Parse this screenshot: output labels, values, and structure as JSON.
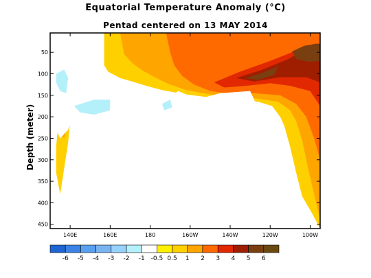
{
  "chart_data": {
    "type": "heatmap",
    "title": "Equatorial Temperature Anomaly (°C)",
    "subtitle": "Pentad centered on 13 MAY 2014",
    "xlabel": "",
    "ylabel": "Depth (meter)",
    "x_range": [
      130,
      265
    ],
    "x_ticks": [
      {
        "value": 140,
        "label": "140E"
      },
      {
        "value": 160,
        "label": "160E"
      },
      {
        "value": 180,
        "label": "180"
      },
      {
        "value": 200,
        "label": "160W"
      },
      {
        "value": 220,
        "label": "140W"
      },
      {
        "value": 240,
        "label": "120W"
      },
      {
        "value": 260,
        "label": "100W"
      }
    ],
    "y_range": [
      5,
      460
    ],
    "y_ticks": [
      50,
      100,
      150,
      200,
      250,
      300,
      350,
      400,
      450
    ],
    "y_inverted": true,
    "colorbar": {
      "levels": [
        -7,
        -6,
        -5,
        -4,
        -3,
        -2,
        -1,
        -0.5,
        0.5,
        1,
        2,
        3,
        4,
        5,
        6,
        7
      ],
      "labels": [
        "-6",
        "-5",
        "-4",
        "-3",
        "-2",
        "-1",
        "-0.5",
        "0.5",
        "1",
        "2",
        "3",
        "4",
        "5",
        "6"
      ],
      "colors": [
        "#1e64d2",
        "#3c82e6",
        "#5aa0f0",
        "#78b4f0",
        "#96d2fa",
        "#b4f0fa",
        "#ffffff",
        "#fff000",
        "#ffd000",
        "#ffa500",
        "#ff6a00",
        "#e12800",
        "#a01e00",
        "#7a3f10",
        "#6b4a12"
      ]
    },
    "regions": [
      {
        "anomaly": "0.5 to 1",
        "points": [
          [
            157,
            5
          ],
          [
            265,
            5
          ],
          [
            265,
            460
          ],
          [
            261,
            425
          ],
          [
            256,
            385
          ],
          [
            253,
            330
          ],
          [
            250,
            270
          ],
          [
            247,
            220
          ],
          [
            245,
            200
          ],
          [
            241,
            175
          ],
          [
            234,
            165
          ],
          [
            224,
            160
          ],
          [
            210,
            155
          ],
          [
            198,
            148
          ],
          [
            186,
            138
          ],
          [
            178,
            128
          ],
          [
            171,
            118
          ],
          [
            165,
            110
          ],
          [
            159,
            95
          ],
          [
            157,
            80
          ]
        ]
      },
      {
        "anomaly": "0.5 to 1",
        "points": [
          [
            135,
            185
          ],
          [
            139,
            180
          ],
          [
            140,
            210
          ],
          [
            139,
            260
          ],
          [
            137,
            320
          ],
          [
            135,
            380
          ],
          [
            133,
            330
          ],
          [
            133,
            270
          ],
          [
            134,
            220
          ]
        ]
      },
      {
        "anomaly": "1 to 2",
        "points": [
          [
            165,
            5
          ],
          [
            265,
            5
          ],
          [
            265,
            440
          ],
          [
            262,
            380
          ],
          [
            259,
            320
          ],
          [
            256,
            255
          ],
          [
            253,
            210
          ],
          [
            250,
            185
          ],
          [
            244,
            165
          ],
          [
            234,
            158
          ],
          [
            222,
            153
          ],
          [
            210,
            148
          ],
          [
            198,
            138
          ],
          [
            190,
            125
          ],
          [
            183,
            110
          ],
          [
            176,
            92
          ],
          [
            171,
            75
          ],
          [
            167,
            55
          ]
        ]
      },
      {
        "anomaly": "1 to 2",
        "points": [
          [
            135,
            195
          ],
          [
            138,
            190
          ],
          [
            139,
            215
          ],
          [
            137,
            250
          ],
          [
            135,
            240
          ],
          [
            134,
            215
          ]
        ]
      },
      {
        "anomaly": "2 to 3",
        "points": [
          [
            188,
            5
          ],
          [
            265,
            5
          ],
          [
            265,
            300
          ],
          [
            262,
            250
          ],
          [
            258,
            200
          ],
          [
            253,
            170
          ],
          [
            245,
            150
          ],
          [
            232,
            145
          ],
          [
            220,
            147
          ],
          [
            210,
            140
          ],
          [
            202,
            125
          ],
          [
            196,
            105
          ],
          [
            192,
            80
          ],
          [
            190,
            50
          ]
        ]
      },
      {
        "anomaly": "3 to 4",
        "points": [
          [
            212,
            120
          ],
          [
            225,
            95
          ],
          [
            240,
            70
          ],
          [
            252,
            48
          ],
          [
            262,
            30
          ],
          [
            265,
            30
          ],
          [
            265,
            175
          ],
          [
            260,
            140
          ],
          [
            250,
            128
          ],
          [
            240,
            122
          ],
          [
            228,
            128
          ],
          [
            217,
            132
          ]
        ]
      },
      {
        "anomaly": "4 to 5",
        "points": [
          [
            223,
            110
          ],
          [
            235,
            92
          ],
          [
            248,
            68
          ],
          [
            260,
            38
          ],
          [
            265,
            38
          ],
          [
            265,
            120
          ],
          [
            258,
            108
          ],
          [
            245,
            108
          ],
          [
            232,
            118
          ]
        ]
      },
      {
        "anomaly": "5 to 6",
        "points": [
          [
            228,
            110
          ],
          [
            236,
            98
          ],
          [
            244,
            83
          ],
          [
            242,
            102
          ],
          [
            234,
            114
          ]
        ]
      },
      {
        "anomaly": "5 to 6",
        "points": [
          [
            251,
            48
          ],
          [
            257,
            35
          ],
          [
            263,
            30
          ],
          [
            265,
            30
          ],
          [
            265,
            70
          ],
          [
            259,
            72
          ],
          [
            253,
            65
          ]
        ]
      },
      {
        "anomaly": "-0.5 to -1",
        "points": [
          [
            131,
            80
          ],
          [
            137,
            70
          ],
          [
            141,
            110
          ],
          [
            142,
            175
          ],
          [
            141,
            205
          ],
          [
            139,
            230
          ],
          [
            135,
            250
          ],
          [
            132,
            220
          ],
          [
            131,
            150
          ]
        ]
      },
      {
        "anomaly": "-0.5 to -1",
        "points": [
          [
            142,
            145
          ],
          [
            156,
            132
          ],
          [
            170,
            140
          ],
          [
            178,
            160
          ],
          [
            176,
            230
          ],
          [
            172,
            215
          ],
          [
            165,
            215
          ],
          [
            158,
            222
          ],
          [
            151,
            220
          ],
          [
            145,
            228
          ],
          [
            141,
            205
          ]
        ]
      },
      {
        "anomaly": "-0.5 to -1",
        "points": [
          [
            150,
            140
          ],
          [
            160,
            120
          ],
          [
            169,
            123
          ],
          [
            170,
            133
          ],
          [
            160,
            142
          ]
        ]
      },
      {
        "anomaly": "-0.5 to -1",
        "points": [
          [
            178,
            215
          ],
          [
            184,
            185
          ],
          [
            188,
            160
          ],
          [
            194,
            140
          ],
          [
            199,
            150
          ],
          [
            199,
            190
          ],
          [
            195,
            230
          ],
          [
            190,
            245
          ],
          [
            183,
            238
          ],
          [
            178,
            230
          ]
        ]
      },
      {
        "anomaly": "-0.5 to -1",
        "points": [
          [
            203,
            160
          ],
          [
            215,
            145
          ],
          [
            230,
            140
          ],
          [
            233,
            170
          ],
          [
            231,
            220
          ],
          [
            229,
            260
          ],
          [
            225,
            260
          ],
          [
            222,
            225
          ],
          [
            212,
            222
          ],
          [
            205,
            215
          ],
          [
            202,
            190
          ]
        ]
      },
      {
        "anomaly": "-1 to -2",
        "points": [
          [
            133,
            100
          ],
          [
            137,
            90
          ],
          [
            139,
            110
          ],
          [
            138,
            145
          ],
          [
            135,
            140
          ],
          [
            133,
            120
          ]
        ]
      },
      {
        "anomaly": "-1 to -2",
        "points": [
          [
            142,
            175
          ],
          [
            152,
            160
          ],
          [
            160,
            160
          ],
          [
            160,
            185
          ],
          [
            152,
            195
          ],
          [
            145,
            190
          ]
        ]
      },
      {
        "anomaly": "-1 to -2",
        "points": [
          [
            186,
            170
          ],
          [
            190,
            160
          ],
          [
            191,
            178
          ],
          [
            187,
            185
          ]
        ]
      }
    ]
  }
}
